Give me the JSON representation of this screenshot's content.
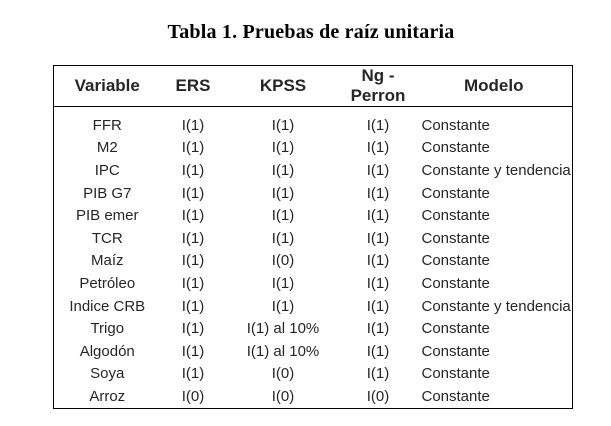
{
  "title": "Tabla 1. Pruebas de raíz unitaria",
  "table": {
    "columns": [
      "Variable",
      "ERS",
      "KPSS",
      "Ng - Perron",
      "Modelo"
    ],
    "rows": [
      [
        "FFR",
        "I(1)",
        "I(1)",
        "I(1)",
        "Constante"
      ],
      [
        "M2",
        "I(1)",
        "I(1)",
        "I(1)",
        "Constante"
      ],
      [
        "IPC",
        "I(1)",
        "I(1)",
        "I(1)",
        "Constante y tendencia"
      ],
      [
        "PIB G7",
        "I(1)",
        "I(1)",
        "I(1)",
        "Constante"
      ],
      [
        "PIB emer",
        "I(1)",
        "I(1)",
        "I(1)",
        "Constante"
      ],
      [
        "TCR",
        "I(1)",
        "I(1)",
        "I(1)",
        "Constante"
      ],
      [
        "Maíz",
        "I(1)",
        "I(0)",
        "I(1)",
        "Constante"
      ],
      [
        "Petróleo",
        "I(1)",
        "I(1)",
        "I(1)",
        "Constante"
      ],
      [
        "Indice CRB",
        "I(1)",
        "I(1)",
        "I(1)",
        "Constante y tendencia"
      ],
      [
        "Trigo",
        "I(1)",
        "I(1) al 10%",
        "I(1)",
        "Constante"
      ],
      [
        "Algodón",
        "I(1)",
        "I(1) al 10%",
        "I(1)",
        "Constante"
      ],
      [
        "Soya",
        "I(1)",
        "I(0)",
        "I(1)",
        "Constante"
      ],
      [
        "Arroz",
        "I(0)",
        "I(0)",
        "I(0)",
        "Constante"
      ]
    ]
  },
  "colors": {
    "text": "#262626",
    "border": "#000000",
    "background": "#ffffff"
  }
}
